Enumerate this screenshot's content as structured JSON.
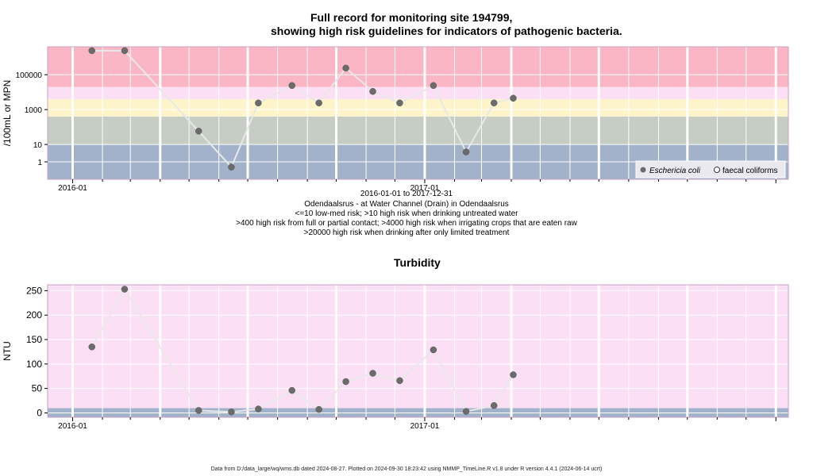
{
  "chart_data": [
    {
      "type": "line",
      "title_line1": "Full record for monitoring site 194799,",
      "title_line2": "showing high risk guidelines for indicators of pathogenic bacteria.",
      "ylabel": "/100mL or MPN",
      "yscale": "log",
      "ylim": [
        0.1,
        4000000
      ],
      "yticks": [
        {
          "v": 1,
          "label": "1"
        },
        {
          "v": 10,
          "label": "10"
        },
        {
          "v": 1000,
          "label": "1000"
        },
        {
          "v": 100000,
          "label": "100000"
        }
      ],
      "xticks": [
        {
          "date": "2016-01-01",
          "label": "2016-01"
        },
        {
          "date": "2017-01-01",
          "label": "2017-01"
        }
      ],
      "xlim": [
        "2015-12-06",
        "2018-01-14"
      ],
      "bands": [
        {
          "from": 0.1,
          "to": 10,
          "color": "#a3b2cb"
        },
        {
          "from": 10,
          "to": 400,
          "color": "#c5cdc4"
        },
        {
          "from": 400,
          "to": 4000,
          "color": "#fdf5c9"
        },
        {
          "from": 4000,
          "to": 20000,
          "color": "#fbdff5"
        },
        {
          "from": 20000,
          "to": 4000000,
          "color": "#fbb6c5"
        }
      ],
      "series": [
        {
          "name": "Eschericia coli",
          "x": [
            "2016-01-21",
            "2016-02-24",
            "2016-05-11",
            "2016-06-14",
            "2016-07-12",
            "2016-08-16",
            "2016-09-13",
            "2016-10-11",
            "2016-11-08",
            "2016-12-06",
            "2017-01-10",
            "2017-02-13",
            "2017-03-14",
            "2017-04-03"
          ],
          "y": [
            2400000,
            2400000,
            58,
            0.5,
            2400,
            24000,
            2400,
            240000,
            11000,
            2400,
            24000,
            3.7,
            2400,
            4500
          ]
        }
      ],
      "legend": {
        "position": "bottom-right",
        "entries": [
          "Eschericia coli",
          "faecal coliforms"
        ]
      },
      "period": "2016-01-01 to 2017-12-31",
      "site": "Odendaalsrus - at Water Channel (Drain) in Odendaalsrus",
      "notes": [
        "<=10 low-med risk; >10 high risk when drinking untreated water",
        ">400 high risk from full or partial contact; >4000 high risk when irrigating crops that are eaten raw",
        ">20000 high risk when drinking after only limited treatment"
      ]
    },
    {
      "type": "line",
      "title": "Turbidity",
      "ylabel": "NTU",
      "ylim": [
        -9,
        262
      ],
      "yticks": [
        {
          "v": 0,
          "label": "0"
        },
        {
          "v": 50,
          "label": "50"
        },
        {
          "v": 100,
          "label": "100"
        },
        {
          "v": 150,
          "label": "150"
        },
        {
          "v": 200,
          "label": "200"
        },
        {
          "v": 250,
          "label": "250"
        }
      ],
      "xticks": [
        {
          "date": "2016-01-01",
          "label": "2016-01"
        },
        {
          "date": "2017-01-01",
          "label": "2017-01"
        }
      ],
      "xlim": [
        "2015-12-06",
        "2018-01-14"
      ],
      "bands": [
        {
          "from": -9,
          "to": 10,
          "color": "#a3b2cb"
        },
        {
          "from": 10,
          "to": 262,
          "color": "#fbdff5"
        }
      ],
      "series": [
        {
          "name": "Turbidity",
          "x": [
            "2016-01-21",
            "2016-02-24",
            "2016-05-11",
            "2016-06-14",
            "2016-07-12",
            "2016-08-16",
            "2016-09-13",
            "2016-10-11",
            "2016-11-08",
            "2016-12-06",
            "2017-01-10",
            "2017-02-13",
            "2017-03-14",
            "2017-04-03"
          ],
          "y": [
            135,
            253,
            5,
            2,
            8,
            46,
            7,
            64,
            81,
            66,
            129,
            3,
            15,
            78
          ]
        }
      ]
    }
  ],
  "footer": "Data from D:/data_large/wq/wms.db dated 2024-08-27. Plotted on 2024-09-30 18:23:42 using NMMP_TimeLine.R v1.8 under R version 4.4.1 (2024-06-14 ucrt)"
}
